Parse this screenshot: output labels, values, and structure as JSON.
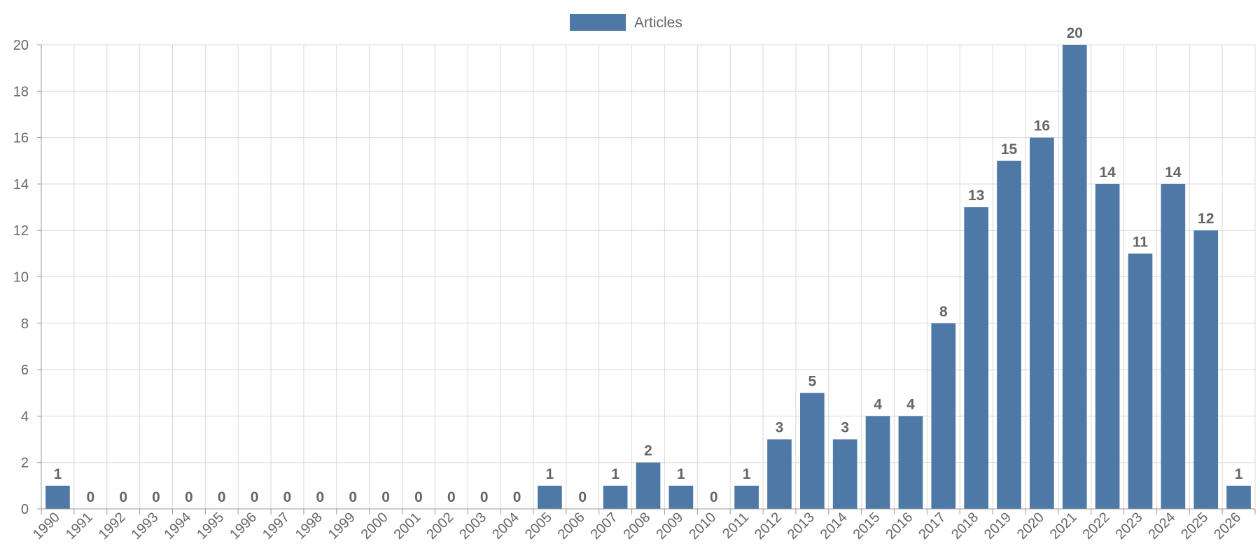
{
  "chart_data": {
    "type": "bar",
    "legend": {
      "position": "top-center",
      "entries": [
        "Articles"
      ]
    },
    "series": [
      {
        "name": "Articles",
        "color": "#4e79a7",
        "values": [
          1,
          0,
          0,
          0,
          0,
          0,
          0,
          0,
          0,
          0,
          0,
          0,
          0,
          0,
          0,
          1,
          0,
          1,
          2,
          1,
          0,
          1,
          3,
          5,
          3,
          4,
          4,
          8,
          13,
          15,
          16,
          20,
          14,
          11,
          14,
          12,
          1
        ]
      }
    ],
    "categories": [
      "1990",
      "1991",
      "1992",
      "1993",
      "1994",
      "1995",
      "1996",
      "1997",
      "1998",
      "1999",
      "2000",
      "2001",
      "2002",
      "2003",
      "2004",
      "2005",
      "2006",
      "2007",
      "2008",
      "2009",
      "2010",
      "2011",
      "2012",
      "2013",
      "2014",
      "2015",
      "2016",
      "2017",
      "2018",
      "2019",
      "2020",
      "2021",
      "2022",
      "2023",
      "2024",
      "2025",
      "2026"
    ],
    "ylim": [
      0,
      20
    ],
    "yticks": [
      0,
      2,
      4,
      6,
      8,
      10,
      12,
      14,
      16,
      18,
      20
    ],
    "grid": true,
    "data_labels": true,
    "xlabel": "",
    "ylabel": "",
    "title": ""
  }
}
